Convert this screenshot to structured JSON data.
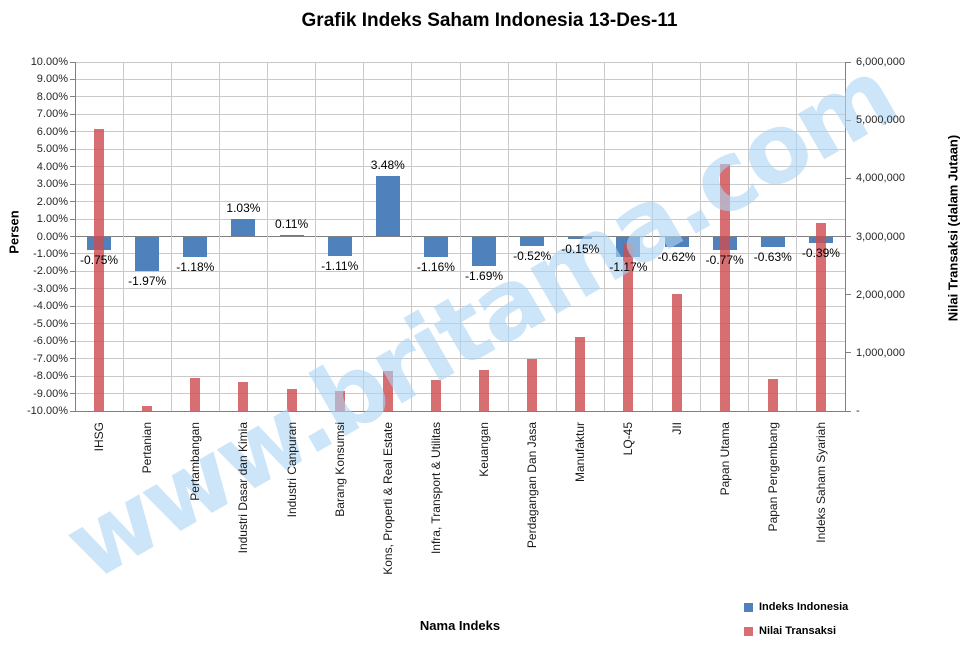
{
  "title": "Grafik Indeks Saham Indonesia 13-Des-11",
  "watermark": {
    "text": "www.britama.com",
    "color": "rgba(172,213,243,0.62)"
  },
  "chart_data": {
    "type": "bar",
    "title": "Grafik Indeks Saham Indonesia 13-Des-11",
    "grid": true,
    "legend_position": "bottom-right",
    "categories": [
      "IHSG",
      "Pertanian",
      "Pertambangan",
      "Industri Dasar dan Kimia",
      "Industri Canpuran",
      "Barang Konsumsi",
      "Kons, Properti & Real Estate",
      "Infra, Transport & Utilitas",
      "Keuangan",
      "Perdagangan Dan Jasa",
      "Manufaktur",
      "LQ-45",
      "JII",
      "Papan Utama",
      "Papan Pengembang",
      "Indeks Saham Syariah"
    ],
    "series": [
      {
        "name": "Indeks Indonesia",
        "axis": "left",
        "unit": "percent",
        "color": "#4F81BD",
        "values": [
          -0.75,
          -1.97,
          -1.18,
          1.03,
          0.11,
          -1.11,
          3.48,
          -1.16,
          -1.69,
          -0.52,
          -0.15,
          -1.17,
          -0.62,
          -0.77,
          -0.63,
          -0.39
        ],
        "labels": [
          "-0.75%",
          "-1.97%",
          "-1.18%",
          "1.03%",
          "0.11%",
          "-1.11%",
          "3.48%",
          "-1.16%",
          "-1.69%",
          "-0.52%",
          "-0.15%",
          "-1.17%",
          "-0.62%",
          "-0.77%",
          "-0.63%",
          "-0.39%"
        ]
      },
      {
        "name": "Nilai Transaksi",
        "axis": "right",
        "unit": "dalam jutaan",
        "color": "#CD4E53",
        "opacity": 0.82,
        "values": [
          4840000,
          90000,
          560000,
          500000,
          370000,
          350000,
          690000,
          540000,
          700000,
          890000,
          1270000,
          2870000,
          2010000,
          4250000,
          550000,
          3230000
        ]
      }
    ],
    "left_axis": {
      "title": "Persen",
      "min": -10,
      "max": 10,
      "step": 1,
      "tick_labels": [
        "10.00%",
        "9.00%",
        "8.00%",
        "7.00%",
        "6.00%",
        "5.00%",
        "4.00%",
        "3.00%",
        "2.00%",
        "1.00%",
        "0.00%",
        "-1.00%",
        "-2.00%",
        "-3.00%",
        "-4.00%",
        "-5.00%",
        "-6.00%",
        "-7.00%",
        "-8.00%",
        "-9.00%",
        "-10.00%"
      ]
    },
    "right_axis": {
      "title": "Nilai Transaksi (dalam Jutaan)",
      "min": 0,
      "max": 6000000,
      "step": 1000000,
      "tick_labels": [
        "6,000,000",
        "5,000,000",
        "4,000,000",
        "3,000,000",
        "2,000,000",
        "1,000,000",
        "-"
      ]
    },
    "x_axis": {
      "title": "Nama Indeks"
    },
    "colors": {
      "gridline": "#C9C9C9",
      "axis_line": "#808080"
    }
  }
}
